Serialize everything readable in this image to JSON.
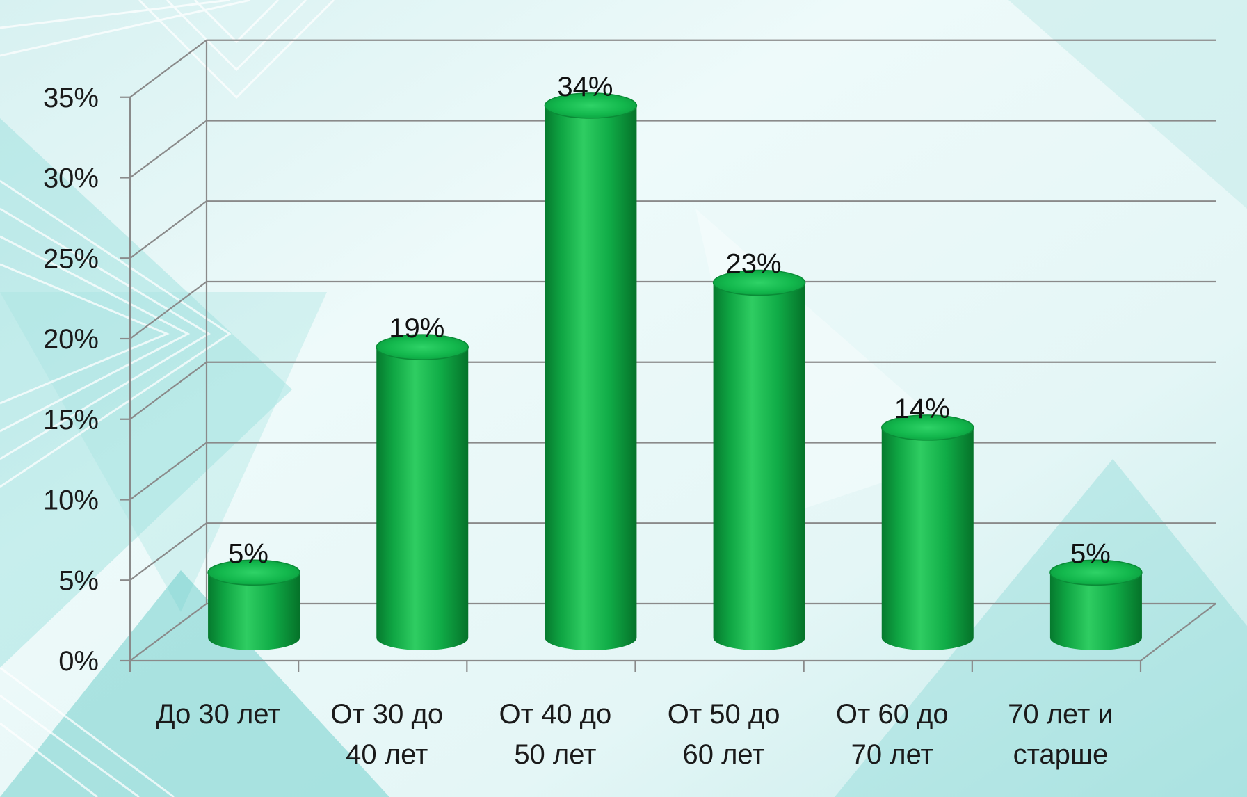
{
  "chart_data": {
    "type": "bar",
    "style": "3d-cylinder",
    "categories": [
      [
        "До 30 лет"
      ],
      [
        "От 30 до",
        "40 лет"
      ],
      [
        "От 40 до",
        "50 лет"
      ],
      [
        "От 50 до",
        "60 лет"
      ],
      [
        "От 60 до",
        "70 лет"
      ],
      [
        "70 лет и",
        "старше"
      ]
    ],
    "values": [
      5,
      19,
      34,
      23,
      14,
      5
    ],
    "data_labels": [
      "5%",
      "19%",
      "34%",
      "23%",
      "14%",
      "5%"
    ],
    "y_ticks": [
      0,
      5,
      10,
      15,
      20,
      25,
      30,
      35
    ],
    "y_tick_labels": [
      "0%",
      "5%",
      "10%",
      "15%",
      "20%",
      "25%",
      "30%",
      "35%"
    ],
    "ylim": [
      0,
      35
    ],
    "grid": true,
    "legend": "none",
    "title": "",
    "xlabel": "",
    "ylabel": "",
    "colors": {
      "bar_main": "#0fae45",
      "bar_dark": "#067a2e",
      "bar_light": "#3fd06d",
      "bar_top": "#12c052",
      "grid": "#8a8a8a",
      "background_light": "#f2fbfb",
      "background_teal": "#6fcfcc"
    }
  }
}
